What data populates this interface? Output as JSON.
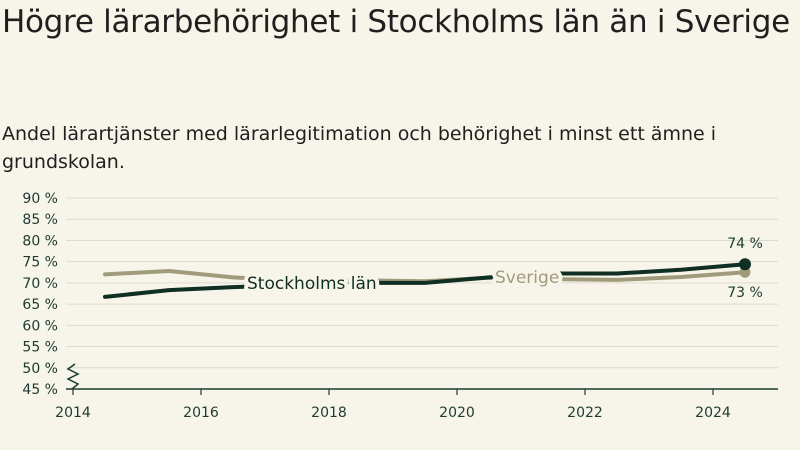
{
  "title": "Högre lärarbehörighet i Stockholms län än i Sverige",
  "subtitle": "Andel lärartjänster med lärarlegitimation och behörighet i minst ett ämne i grundskolan.",
  "colors": {
    "stockholm": "#0f2e24",
    "sverige": "#a09c7b",
    "axis": "#1d3b32",
    "grid": "#dedad0",
    "background": "#f7f4ea"
  },
  "chart_data": {
    "type": "line",
    "title": "Högre lärarbehörighet i Stockholms län än i Sverige",
    "subtitle": "Andel lärartjänster med lärarlegitimation och behörighet i minst ett ämne i grundskolan.",
    "xlabel": "",
    "ylabel": "",
    "x_ticks": [
      "2014",
      "2016",
      "2018",
      "2020",
      "2022",
      "2024"
    ],
    "y_ticks": [
      "45 %",
      "50 %",
      "55 %",
      "60 %",
      "65 %",
      "70 %",
      "75 %",
      "80 %",
      "85 %",
      "90 %"
    ],
    "ylim": [
      45,
      90
    ],
    "y_axis_break": true,
    "grid": true,
    "x": [
      2014.5,
      2015.5,
      2016.5,
      2017.5,
      2018.5,
      2019.5,
      2020.5,
      2021.5,
      2022.5,
      2023.5,
      2024.5
    ],
    "series": [
      {
        "name": "Stockholms län",
        "values": [
          66.7,
          68.3,
          69.0,
          69.5,
          70.0,
          70.0,
          71.3,
          72.2,
          72.2,
          73.1,
          74.4
        ]
      },
      {
        "name": "Sverige",
        "values": [
          72.0,
          72.8,
          71.3,
          70.5,
          70.6,
          70.4,
          71.2,
          70.9,
          70.7,
          71.4,
          72.5
        ]
      }
    ],
    "annotations": [
      "74 %",
      "73 %"
    ]
  }
}
